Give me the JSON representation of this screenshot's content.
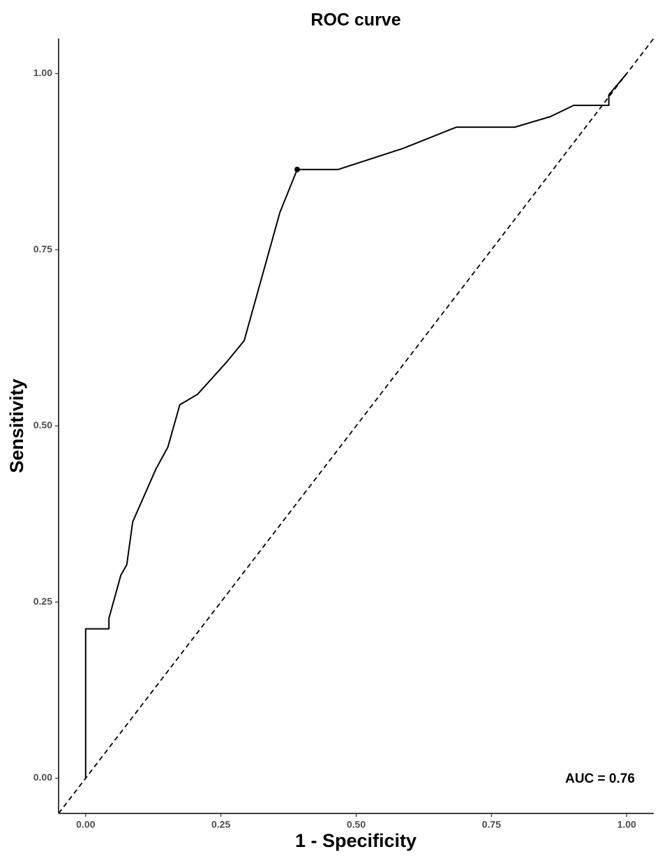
{
  "chart_data": {
    "type": "line",
    "title": "ROC curve",
    "x_label": "1 - Specificity",
    "y_label": "Sensitivity",
    "annotation": "AUC = 0.76",
    "series": [
      {
        "color": "#000000",
        "x": [
          0,
          0,
          0.043,
          0.043,
          0.065,
          0.076,
          0.087,
          0.13,
          0.152,
          0.174,
          0.207,
          0.261,
          0.293,
          0.359,
          0.391,
          0.467,
          0.587,
          0.685,
          0.793,
          0.859,
          0.902,
          0.967,
          0.967,
          1
        ],
        "values": [
          0,
          0.212,
          0.212,
          0.227,
          0.288,
          0.303,
          0.364,
          0.439,
          0.47,
          0.53,
          0.545,
          0.591,
          0.621,
          0.803,
          0.864,
          0.864,
          0.894,
          0.924,
          0.924,
          0.939,
          0.955,
          0.955,
          0.97,
          1
        ]
      }
    ],
    "highlight_point": {
      "x": 0.391,
      "y": 0.864
    },
    "reference_line": {
      "slope": 1,
      "intercept": 0
    },
    "xlim": [
      -0.05,
      1.05
    ],
    "ylim": [
      -0.05,
      1.05
    ],
    "xticks": [
      {
        "value": 0,
        "label": "0.00"
      },
      {
        "value": 0.25,
        "label": "0.25"
      },
      {
        "value": 0.5,
        "label": "0.50"
      },
      {
        "value": 0.75,
        "label": "0.75"
      },
      {
        "value": 1,
        "label": "1.00"
      }
    ],
    "yticks": [
      {
        "value": 0,
        "label": "0.00"
      },
      {
        "value": 0.25,
        "label": "0.25"
      },
      {
        "value": 0.5,
        "label": "0.50"
      },
      {
        "value": 0.75,
        "label": "0.75"
      },
      {
        "value": 1,
        "label": "1.00"
      }
    ],
    "grid": false
  }
}
